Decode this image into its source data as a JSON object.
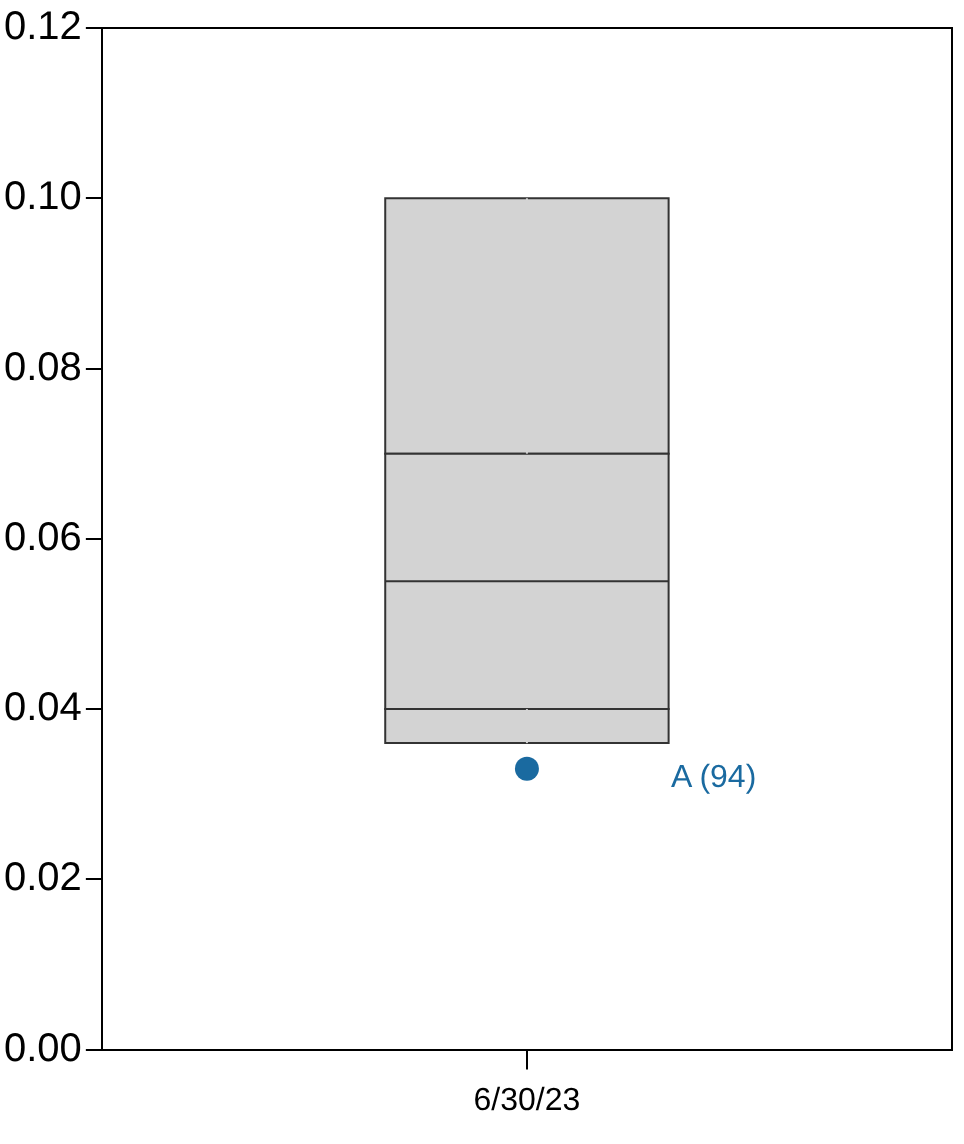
{
  "chart_data": {
    "type": "box",
    "categories": [
      "6/30/23"
    ],
    "boxes": [
      {
        "low": 0.036,
        "q1": 0.04,
        "median": 0.055,
        "q3": 0.07,
        "high": 0.1
      }
    ],
    "color": "#d3d3d3",
    "ylim": [
      0,
      0.12
    ],
    "yticks": [
      {
        "value": 0,
        "label": "0.00"
      },
      {
        "value": 0.02,
        "label": "0.02"
      },
      {
        "value": 0.04,
        "label": "0.04"
      },
      {
        "value": 0.06,
        "label": "0.06"
      },
      {
        "value": 0.08,
        "label": "0.08"
      },
      {
        "value": 0.1,
        "label": "0.10"
      },
      {
        "value": 0.12,
        "label": "0.12"
      }
    ],
    "series": [
      {
        "name": "A (94)",
        "type": "scatter",
        "color": "#1a6aa0",
        "x": [
          "6/30/23"
        ],
        "values": [
          0.033
        ]
      }
    ],
    "marker": "circle"
  }
}
